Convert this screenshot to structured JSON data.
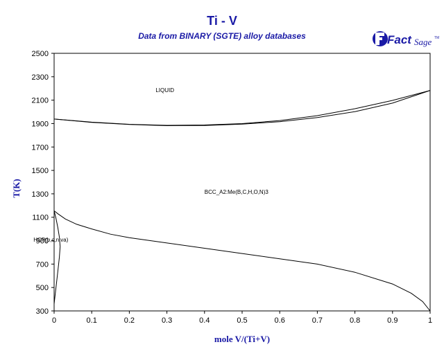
{
  "chart_data": {
    "type": "line",
    "title": "Ti - V",
    "subtitle": "Data from BINARY (SGTE) alloy databases",
    "xlabel": "mole V/(Ti+V)",
    "ylabel": "T(K)",
    "xlim": [
      0,
      1
    ],
    "ylim": [
      300,
      2500
    ],
    "x_ticks": [
      0,
      0.1,
      0.2,
      0.3,
      0.4,
      0.5,
      0.6,
      0.7,
      0.8,
      0.9,
      1
    ],
    "x_tick_labels": [
      "0",
      "0.1",
      "0.2",
      "0.3",
      "0.4",
      "0.5",
      "0.6",
      "0.7",
      "0.8",
      "0.9",
      "1"
    ],
    "y_ticks": [
      300,
      500,
      700,
      900,
      1100,
      1300,
      1500,
      1700,
      1900,
      2100,
      2300,
      2500
    ],
    "y_tick_labels": [
      "300",
      "500",
      "700",
      "900",
      "1100",
      "1300",
      "1500",
      "1700",
      "1900",
      "2100",
      "2300",
      "2500"
    ],
    "grid": false,
    "series": [
      {
        "id": "liquidus",
        "x": [
          0,
          0.1,
          0.2,
          0.3,
          0.4,
          0.5,
          0.6,
          0.7,
          0.8,
          0.9,
          1
        ],
        "y": [
          1939,
          1912,
          1894,
          1885,
          1888,
          1900,
          1926,
          1968,
          2027,
          2098,
          2183
        ]
      },
      {
        "id": "solidus",
        "x": [
          0,
          0.1,
          0.2,
          0.3,
          0.4,
          0.5,
          0.6,
          0.7,
          0.8,
          0.9,
          1
        ],
        "y": [
          1939,
          1910,
          1892,
          1882,
          1884,
          1895,
          1916,
          1951,
          2002,
          2075,
          2183
        ]
      },
      {
        "id": "bcc-hcp-transus",
        "x": [
          0,
          0.01,
          0.03,
          0.06,
          0.1,
          0.15,
          0.2,
          0.3,
          0.4,
          0.5,
          0.6,
          0.7,
          0.8,
          0.9,
          0.95,
          0.98,
          1
        ],
        "y": [
          1155,
          1130,
          1085,
          1040,
          1000,
          955,
          925,
          880,
          835,
          790,
          745,
          700,
          630,
          530,
          450,
          380,
          300
        ]
      },
      {
        "id": "hcp-solvus",
        "x": [
          0,
          0.005,
          0.01,
          0.014,
          0.016,
          0.014,
          0.01,
          0.005,
          0
        ],
        "y": [
          1155,
          1090,
          1010,
          930,
          850,
          760,
          640,
          500,
          360
        ]
      }
    ],
    "annotations": [
      {
        "text": "LIQUID",
        "x": 0.27,
        "y": 2170
      },
      {
        "text": "BCC_A2:Me(B,C,H,O,N)3",
        "x": 0.4,
        "y": 1300
      },
      {
        "text": "HCP(b,c,n,va)",
        "x": -0.055,
        "y": 890
      }
    ],
    "colors": {
      "title": "#1a1aa6",
      "curves": "#000000",
      "axes": "#000000"
    }
  },
  "logo": {
    "text_main": "Fact",
    "text_sub": "Sage",
    "mark": "TM"
  }
}
